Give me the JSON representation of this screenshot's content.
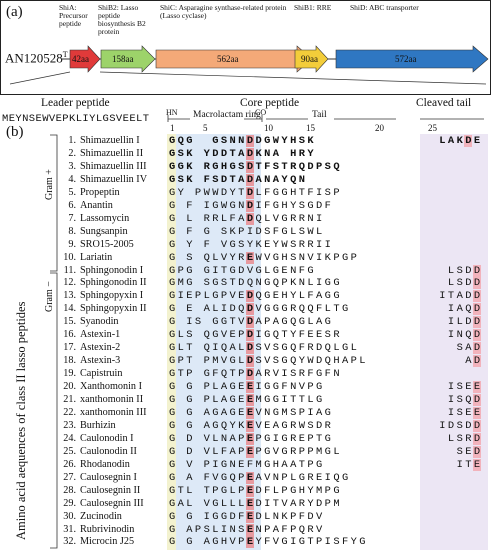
{
  "panel_a": {
    "label": "(a)",
    "strain": "AN120528",
    "strain_sup": "T",
    "genes": [
      {
        "name": "ShiA:",
        "desc": "Precursor peptide",
        "size": "42aa",
        "color": "#e03a3a"
      },
      {
        "name": "ShiB2:",
        "desc": "Lasso peptide biosynthesis B2 protein",
        "size": "158aa",
        "color": "#9dd36a"
      },
      {
        "name": "ShiC:",
        "desc": "Asparagine synthase-related protein (Lasso cyclase)",
        "size": "562aa",
        "color": "#f4a978"
      },
      {
        "name": "ShiB1:",
        "desc": "RRE",
        "size": "90aa",
        "color": "#f3cd3a"
      },
      {
        "name": "ShiD:",
        "desc": "ABC transporter",
        "size": "572aa",
        "color": "#2f77c2"
      }
    ],
    "leader_label": "Leader peptide",
    "core_label": "Core peptide",
    "cleaved_label": "Cleaved tail",
    "leader_seq": "MEYNSEWVEPKLIYLGSVEELT"
  },
  "panel_b": {
    "label": "(b)",
    "axis_label": "Amino acid aequences of class II lasso peptides",
    "macrolactam_label": "Macrolactam ring",
    "tail_label": "Tail",
    "hn_label": "HN",
    "co_label": "CO",
    "position_numbers": [
      "1",
      "5",
      "10",
      "15",
      "20",
      "25"
    ],
    "group_labels": [
      "Gram +",
      "Gram −"
    ],
    "rows": [
      {
        "num": "1.",
        "name": "Shimazuellin I",
        "seq": "GQG  GSNNDDGWYHSK",
        "tail": "LAKDE",
        "bold": true
      },
      {
        "num": "2.",
        "name": "Shimazuellin II",
        "seq": "GSK YDDTADKNA HRY",
        "tail": "",
        "bold": true
      },
      {
        "num": "3.",
        "name": "Shimazuellin III",
        "seq": "GGK RGHGSDTFSTRQDPSQ",
        "tail": "",
        "bold": true
      },
      {
        "num": "4.",
        "name": "Shimazuellin IV",
        "seq": "GSK FSDTADANAYQN",
        "tail": "",
        "bold": true
      },
      {
        "num": "5.",
        "name": "Propeptin",
        "seq": "GY PWWDYTDLFGGHTFISP",
        "tail": ""
      },
      {
        "num": "6.",
        "name": "Anantin",
        "seq": "G F IGWGNDIFGHYSGDF",
        "tail": ""
      },
      {
        "num": "7.",
        "name": "Lassomycin",
        "seq": "G L RRLFADQLVGRRNI",
        "tail": ""
      },
      {
        "num": "8.",
        "name": "Sungsanpin",
        "seq": "G F G SKPIDSFGLSWL",
        "tail": ""
      },
      {
        "num": "9.",
        "name": "SRO15-2005",
        "seq": "G Y F VGSYKEYWSRRII",
        "tail": ""
      },
      {
        "num": "10.",
        "name": "Lariatin",
        "seq": "G S QLVYREWVGHSNVIKPGP",
        "tail": ""
      },
      {
        "num": "11.",
        "name": "Sphingonodin I",
        "seq": "GPG GITGDVGLGENFG",
        "tail": "LSDD"
      },
      {
        "num": "12.",
        "name": "Sphingonodin II",
        "seq": "GMG SGSTDQNGQPKNLIGG",
        "tail": "LSDD"
      },
      {
        "num": "13.",
        "name": "Sphingopyxin I",
        "seq": "GIEPLGPVEDQGEHYLFAGG",
        "tail": "ITADD"
      },
      {
        "num": "14.",
        "name": "Sphingopyxin II",
        "seq": "G E ALIDQDVGGGRQQFLTG",
        "tail": "IAQD"
      },
      {
        "num": "15.",
        "name": "Syanodin",
        "seq": "G IS GGTVDAPAGQGLAG",
        "tail": "ILDD"
      },
      {
        "num": "16.",
        "name": "Astexin-1",
        "seq": "GLS QGVEPDIGQTYFEESR",
        "tail": "INQD"
      },
      {
        "num": "17.",
        "name": "Astexin-2",
        "seq": "GLT QIQALDSVSGQFRDQLGL",
        "tail": "SAD"
      },
      {
        "num": "18.",
        "name": "Astexin-3",
        "seq": "GPT PMVGLDSVSGQYWDQHAPL",
        "tail": "AD"
      },
      {
        "num": "19.",
        "name": "Capistruin",
        "seq": "GTP GFQTPDARVISRFGFN",
        "tail": ""
      },
      {
        "num": "20.",
        "name": "Xanthomonin I",
        "seq": "G G PLAGEEIGGFNVPG",
        "tail": "ISEE"
      },
      {
        "num": "21.",
        "name": "xanthomonin II",
        "seq": "G G PLAGEEMGGITTLG",
        "tail": "ISQD"
      },
      {
        "num": "22.",
        "name": "xanthomonin III",
        "seq": "G G AGAGEEVNGMSPIAG",
        "tail": "ISEE"
      },
      {
        "num": "23.",
        "name": "Burhizin",
        "seq": "G G AGQYKEVEAGRWSDR",
        "tail": "IDSDD"
      },
      {
        "num": "24.",
        "name": "Caulonodin I",
        "seq": "G D VLNAPEPGIGREPTG",
        "tail": "LSRD"
      },
      {
        "num": "25.",
        "name": "Caulonodin II",
        "seq": "G D VLFAPEPGVGRPPMGL",
        "tail": "SED"
      },
      {
        "num": "26.",
        "name": "Rhodanodin",
        "seq": "G V PIGNEFMGHAATPG",
        "tail": "ITE"
      },
      {
        "num": "27.",
        "name": "Caulosegnin I",
        "seq": "G A FVGQPEAVNPLGREIQG",
        "tail": ""
      },
      {
        "num": "28.",
        "name": "Caulosegnin II",
        "seq": "GTL TPGLPEDFLPGHYMPG",
        "tail": ""
      },
      {
        "num": "29.",
        "name": "Caulosegnin III",
        "seq": "GAL VGLLLEDITVARYDPM",
        "tail": ""
      },
      {
        "num": "30.",
        "name": "Zucinodin",
        "seq": "G G IGGDFEDLNKPFDV",
        "tail": ""
      },
      {
        "num": "31.",
        "name": "Rubrivinodin",
        "seq": "G APSLINSENPAFPQRV",
        "tail": ""
      },
      {
        "num": "32.",
        "name": "Microcin J25",
        "seq": "G G AGHVPEYFVGIGTPISFYG",
        "tail": ""
      }
    ]
  }
}
